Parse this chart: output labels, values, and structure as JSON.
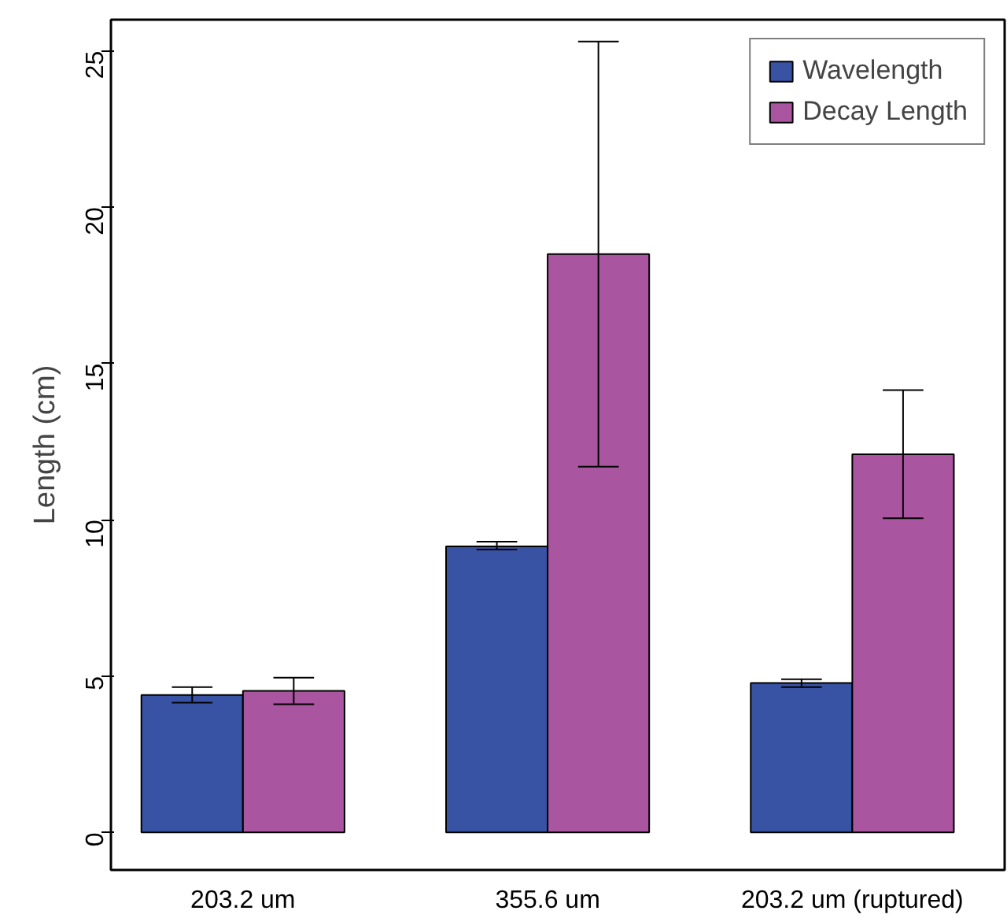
{
  "chart_data": {
    "type": "bar",
    "ylabel": "Length (cm)",
    "categories": [
      "203.2 um",
      "355.6 um",
      "203.2 um (ruptured)"
    ],
    "series": [
      {
        "name": "Wavelength",
        "color": "#3953a4",
        "values": [
          4.4,
          9.15,
          4.78
        ],
        "errors": [
          [
            4.15,
            4.65
          ],
          [
            9.05,
            9.3
          ],
          [
            4.65,
            4.9
          ]
        ]
      },
      {
        "name": "Decay Length",
        "color": "#a9559f",
        "values": [
          4.53,
          18.5,
          12.1
        ],
        "errors": [
          [
            4.1,
            4.95
          ],
          [
            11.7,
            25.3
          ],
          [
            10.05,
            14.15
          ]
        ]
      }
    ],
    "ylim": [
      -1.2,
      26
    ],
    "yticks": [
      0,
      5,
      10,
      15,
      20,
      25
    ],
    "legend": "top right",
    "grid": false
  }
}
